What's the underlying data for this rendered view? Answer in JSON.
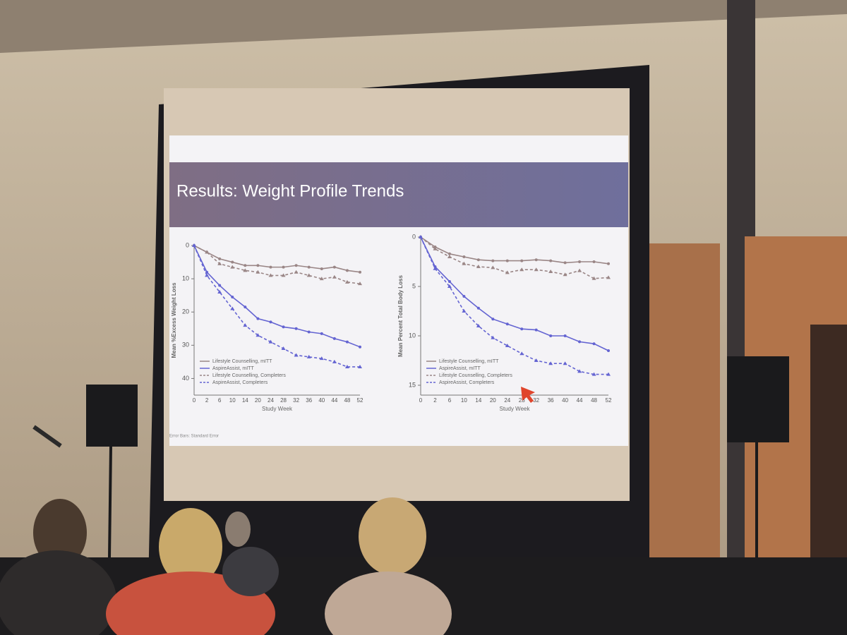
{
  "title": "Results: Weight Profile Trends",
  "footnote": "Error Bars: Standard Error",
  "chart_data": [
    {
      "type": "line",
      "y_label": "Mean %Excess Weight Loss",
      "x_label": "Study Week",
      "categories": [
        "0",
        "2",
        "6",
        "10",
        "14",
        "20",
        "24",
        "28",
        "32",
        "36",
        "40",
        "44",
        "48",
        "52"
      ],
      "ylim": [
        0,
        45
      ],
      "yticks": [
        0,
        10,
        20,
        30,
        40
      ],
      "y_reversed": true,
      "legend": "lower left",
      "series": [
        {
          "name": "Lifestyle Counselling, mITT",
          "color": "#9a8686",
          "dashed": false,
          "marker": "circle",
          "values": [
            0,
            2,
            4,
            5,
            6,
            6,
            6.5,
            6.5,
            6,
            6.5,
            7,
            6.5,
            7.5,
            8
          ]
        },
        {
          "name": "AspireAssist, mITT",
          "color": "#6464d2",
          "dashed": false,
          "marker": "circle",
          "values": [
            0,
            8,
            12,
            15.5,
            18.5,
            22,
            23,
            24.5,
            25,
            26,
            26.5,
            28,
            29,
            30.5
          ]
        },
        {
          "name": "Lifestyle Counselling, Completers",
          "color": "#9a8686",
          "dashed": true,
          "marker": "triangle",
          "values": [
            0,
            2,
            5.5,
            6.5,
            7.5,
            8,
            9,
            9,
            8,
            9,
            10,
            9.5,
            11,
            11.5
          ]
        },
        {
          "name": "AspireAssist, Completers",
          "color": "#6464d2",
          "dashed": true,
          "marker": "triangle",
          "values": [
            0,
            9,
            14,
            19,
            24,
            27,
            29,
            31,
            33,
            33.5,
            34,
            35,
            36.5,
            36.5
          ]
        }
      ]
    },
    {
      "type": "line",
      "y_label": "Mean Percent Total Body Loss",
      "x_label": "Study Week",
      "categories": [
        "0",
        "2",
        "6",
        "10",
        "14",
        "20",
        "24",
        "28",
        "32",
        "36",
        "40",
        "44",
        "48",
        "52"
      ],
      "ylim": [
        0,
        16
      ],
      "yticks": [
        0,
        5,
        10,
        15
      ],
      "y_reversed": true,
      "legend": "lower left",
      "series": [
        {
          "name": "Lifestyle Counselling, mITT",
          "color": "#9a8686",
          "dashed": false,
          "marker": "circle",
          "values": [
            0,
            1,
            1.7,
            2,
            2.3,
            2.4,
            2.4,
            2.4,
            2.3,
            2.4,
            2.6,
            2.5,
            2.5,
            2.7
          ]
        },
        {
          "name": "AspireAssist, mITT",
          "color": "#6464d2",
          "dashed": false,
          "marker": "circle",
          "values": [
            0,
            3,
            4.5,
            6,
            7.2,
            8.3,
            8.8,
            9.3,
            9.4,
            10,
            10,
            10.6,
            10.8,
            11.5
          ]
        },
        {
          "name": "Lifestyle Counselling, Completers",
          "color": "#9a8686",
          "dashed": true,
          "marker": "triangle",
          "values": [
            0,
            1.2,
            2,
            2.7,
            3,
            3.1,
            3.6,
            3.3,
            3.3,
            3.5,
            3.8,
            3.4,
            4.2,
            4.1
          ]
        },
        {
          "name": "AspireAssist, Completers",
          "color": "#6464d2",
          "dashed": true,
          "marker": "triangle",
          "values": [
            0,
            3.2,
            5,
            7.5,
            9,
            10.2,
            11,
            11.8,
            12.5,
            12.8,
            12.8,
            13.6,
            13.9,
            13.9
          ]
        }
      ]
    }
  ]
}
